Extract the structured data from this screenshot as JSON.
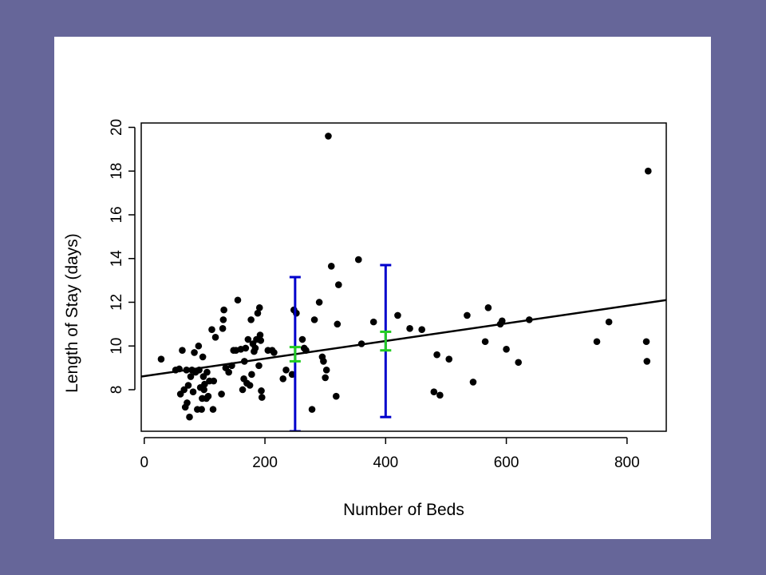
{
  "chart_data": {
    "type": "scatter",
    "title": "",
    "xlabel": "Number of Beds",
    "ylabel": "Length of Stay (days)",
    "xlim": [
      -5,
      865
    ],
    "ylim": [
      6.1,
      20.2
    ],
    "xticks": [
      0,
      200,
      400,
      600,
      800
    ],
    "yticks": [
      8,
      10,
      12,
      14,
      16,
      18,
      20
    ],
    "grid": false,
    "legend": "none",
    "point_color": "#000000",
    "points": [
      [
        28,
        9.4
      ],
      [
        52,
        8.9
      ],
      [
        58,
        8.95
      ],
      [
        60,
        7.8
      ],
      [
        63,
        9.8
      ],
      [
        66,
        8.0
      ],
      [
        68,
        7.2
      ],
      [
        70,
        8.9
      ],
      [
        71,
        7.4
      ],
      [
        73,
        8.2
      ],
      [
        75,
        6.75
      ],
      [
        77,
        8.6
      ],
      [
        79,
        8.9
      ],
      [
        81,
        7.9
      ],
      [
        83,
        9.7
      ],
      [
        85,
        8.8
      ],
      [
        88,
        7.1
      ],
      [
        90,
        10.0
      ],
      [
        91,
        8.9
      ],
      [
        93,
        8.1
      ],
      [
        95,
        7.1
      ],
      [
        96,
        7.6
      ],
      [
        97,
        9.5
      ],
      [
        98,
        8.6
      ],
      [
        99,
        8.0
      ],
      [
        100,
        8.25
      ],
      [
        103,
        7.6
      ],
      [
        104,
        8.8
      ],
      [
        106,
        7.7
      ],
      [
        108,
        8.4
      ],
      [
        112,
        10.75
      ],
      [
        114,
        7.1
      ],
      [
        115,
        8.4
      ],
      [
        118,
        10.4
      ],
      [
        128,
        7.8
      ],
      [
        130,
        10.8
      ],
      [
        131,
        11.2
      ],
      [
        132,
        11.65
      ],
      [
        135,
        9.0
      ],
      [
        140,
        8.8
      ],
      [
        145,
        9.1
      ],
      [
        148,
        9.8
      ],
      [
        152,
        9.8
      ],
      [
        155,
        12.1
      ],
      [
        160,
        9.85
      ],
      [
        163,
        8.0
      ],
      [
        165,
        8.5
      ],
      [
        166,
        9.3
      ],
      [
        168,
        9.9
      ],
      [
        170,
        8.3
      ],
      [
        172,
        10.3
      ],
      [
        175,
        8.2
      ],
      [
        177,
        11.2
      ],
      [
        178,
        8.7
      ],
      [
        180,
        10.1
      ],
      [
        182,
        9.75
      ],
      [
        184,
        9.9
      ],
      [
        186,
        10.3
      ],
      [
        188,
        11.5
      ],
      [
        190,
        9.1
      ],
      [
        191,
        11.75
      ],
      [
        192,
        10.5
      ],
      [
        193,
        10.25
      ],
      [
        194,
        7.95
      ],
      [
        195,
        7.65
      ],
      [
        205,
        9.8
      ],
      [
        212,
        9.8
      ],
      [
        215,
        9.7
      ],
      [
        230,
        8.5
      ],
      [
        235,
        8.9
      ],
      [
        245,
        8.7
      ],
      [
        248,
        11.65
      ],
      [
        252,
        11.5
      ],
      [
        262,
        10.3
      ],
      [
        265,
        9.9
      ],
      [
        268,
        9.8
      ],
      [
        278,
        7.1
      ],
      [
        282,
        11.2
      ],
      [
        290,
        12.0
      ],
      [
        295,
        9.5
      ],
      [
        297,
        9.3
      ],
      [
        300,
        8.55
      ],
      [
        302,
        8.9
      ],
      [
        305,
        19.6
      ],
      [
        310,
        13.65
      ],
      [
        318,
        7.7
      ],
      [
        320,
        11.0
      ],
      [
        322,
        12.8
      ],
      [
        355,
        13.95
      ],
      [
        360,
        10.1
      ],
      [
        380,
        11.1
      ],
      [
        420,
        11.4
      ],
      [
        440,
        10.8
      ],
      [
        460,
        10.75
      ],
      [
        480,
        7.9
      ],
      [
        485,
        9.6
      ],
      [
        490,
        7.75
      ],
      [
        505,
        9.4
      ],
      [
        535,
        11.4
      ],
      [
        545,
        8.35
      ],
      [
        565,
        10.2
      ],
      [
        570,
        11.75
      ],
      [
        590,
        11.0
      ],
      [
        593,
        11.15
      ],
      [
        600,
        9.85
      ],
      [
        620,
        9.25
      ],
      [
        638,
        11.2
      ],
      [
        750,
        10.2
      ],
      [
        770,
        11.1
      ],
      [
        832,
        10.2
      ],
      [
        833,
        9.3
      ],
      [
        835,
        18.0
      ]
    ],
    "regression_line": {
      "color": "#000000",
      "x": [
        -5,
        865
      ],
      "y": [
        8.6,
        12.1
      ]
    },
    "interval_bars": [
      {
        "color": "#0000cc",
        "x": 250,
        "low": 6.1,
        "high": 13.15
      },
      {
        "color": "#0000cc",
        "x": 400,
        "low": 6.75,
        "high": 13.7
      },
      {
        "color": "#22cc22",
        "x": 250,
        "low": 9.3,
        "high": 9.95
      },
      {
        "color": "#22cc22",
        "x": 400,
        "low": 9.8,
        "high": 10.65
      }
    ]
  }
}
